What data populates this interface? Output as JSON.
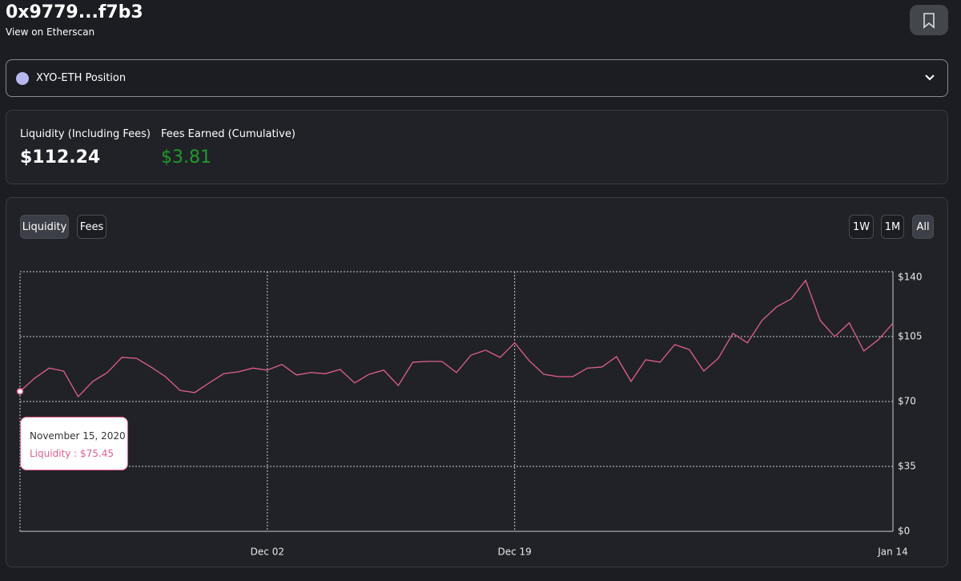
{
  "header": {
    "title": "0x9779...f7b3",
    "link": "View on Etherscan"
  },
  "position_select": {
    "label": "XYO-ETH Position"
  },
  "stats": [
    {
      "label": "Liquidity (Including Fees)",
      "value": "$112.24"
    },
    {
      "label": "Fees Earned (Cumulative)",
      "value": "$3.81"
    }
  ],
  "tabs": [
    "Liquidity",
    "Fees"
  ],
  "ranges": [
    "1W",
    "1M",
    "All"
  ],
  "tooltip": {
    "date": "November 15, 2020",
    "text": "Liquidity : $75.45"
  },
  "chart_data": {
    "type": "line",
    "color": "#e0608a",
    "categories": [
      "Nov 15",
      "Nov 16",
      "Nov 17",
      "Nov 18",
      "Nov 19",
      "Nov 20",
      "Nov 21",
      "Nov 22",
      "Nov 23",
      "Nov 24",
      "Nov 25",
      "Nov 26",
      "Nov 27",
      "Nov 28",
      "Nov 29",
      "Nov 30",
      "Dec 01",
      "Dec 02",
      "Dec 03",
      "Dec 04",
      "Dec 05",
      "Dec 06",
      "Dec 07",
      "Dec 08",
      "Dec 09",
      "Dec 10",
      "Dec 11",
      "Dec 12",
      "Dec 13",
      "Dec 14",
      "Dec 15",
      "Dec 16",
      "Dec 17",
      "Dec 18",
      "Dec 19",
      "Dec 20",
      "Dec 21",
      "Dec 22",
      "Dec 23",
      "Dec 24",
      "Dec 25",
      "Dec 26",
      "Dec 27",
      "Dec 28",
      "Dec 29",
      "Dec 30",
      "Dec 31",
      "Jan 01",
      "Jan 02",
      "Jan 03",
      "Jan 04",
      "Jan 05",
      "Jan 06",
      "Jan 07",
      "Jan 08",
      "Jan 09",
      "Jan 10",
      "Jan 11",
      "Jan 12",
      "Jan 13",
      "Jan 14"
    ],
    "values": [
      75.45,
      82.5,
      88,
      86.4,
      72.6,
      80.8,
      85.6,
      93.8,
      93.3,
      88.6,
      83.4,
      76,
      74.8,
      80,
      85,
      86,
      88,
      86.9,
      90,
      84.3,
      85.6,
      85,
      87.3,
      80,
      84.7,
      86.9,
      78.6,
      91.2,
      91.6,
      91.6,
      85.6,
      95,
      97.7,
      93.8,
      101.6,
      92,
      84.7,
      83.4,
      83.4,
      88,
      88.6,
      94.2,
      80.8,
      92.5,
      91.2,
      100.7,
      98,
      86.4,
      93.3,
      106.7,
      101.6,
      113.7,
      121,
      125.3,
      135.3,
      113.7,
      105,
      112.4,
      97.2,
      103.3,
      112.24
    ],
    "xticks": [
      "Dec 02",
      "Dec 19",
      "Jan 14"
    ],
    "ylim": [
      0,
      140
    ],
    "yticks": [
      {
        "value": 0,
        "label": "$0"
      },
      {
        "value": 35,
        "label": "$35"
      },
      {
        "value": 70,
        "label": "$70"
      },
      {
        "value": 105,
        "label": "$105"
      },
      {
        "value": 140,
        "label": "$140"
      }
    ],
    "grid": true
  }
}
